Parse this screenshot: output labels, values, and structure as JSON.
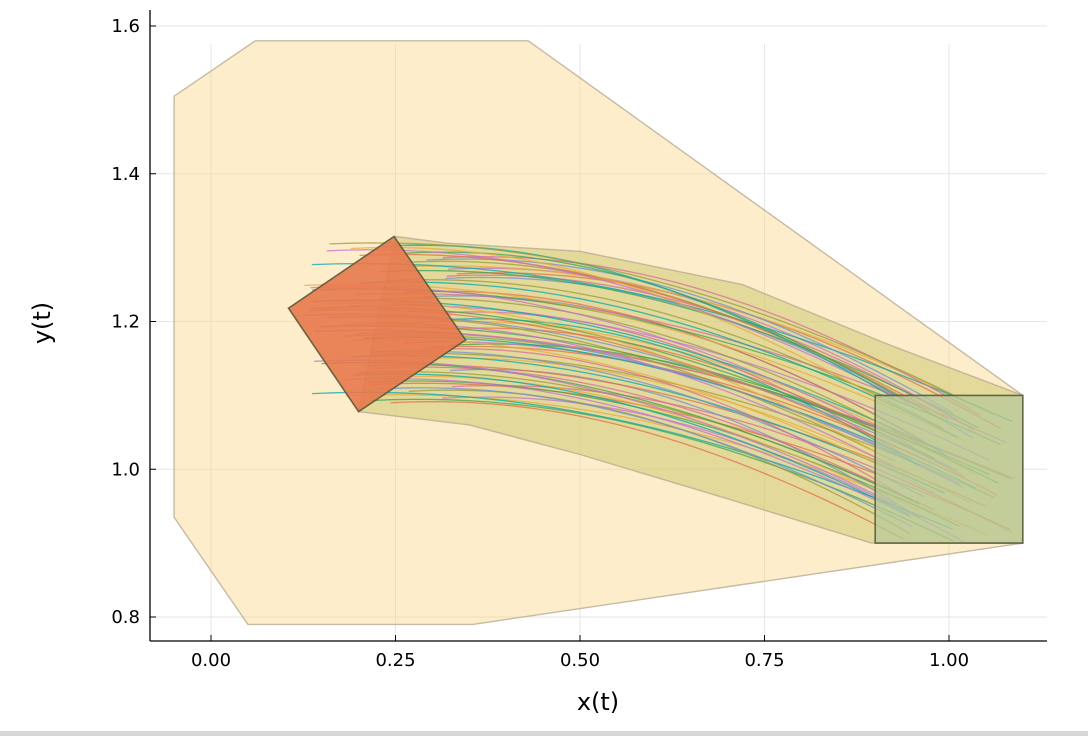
{
  "chart_data": {
    "type": "reachability-plot",
    "title": "",
    "xlabel": "x(t)",
    "ylabel": "y(t)",
    "xlim": [
      -0.08,
      1.13
    ],
    "ylim": [
      0.77,
      1.625
    ],
    "xticks": [
      0.0,
      0.25,
      0.5,
      0.75,
      1.0
    ],
    "xtick_labels": [
      "0.00",
      "0.25",
      "0.50",
      "0.75",
      "1.00"
    ],
    "yticks": [
      0.8,
      1.0,
      1.2,
      1.4,
      1.6
    ],
    "ytick_labels": [
      "0.8",
      "1.0",
      "1.2",
      "1.4",
      "1.6"
    ],
    "grid": true,
    "legend": "none",
    "regions": [
      {
        "kind": "overapproximation",
        "color": "#fdd88a",
        "opacity": 0.45,
        "vertices": [
          [
            -0.05,
            1.505
          ],
          [
            0.06,
            1.58
          ],
          [
            0.43,
            1.58
          ],
          [
            1.1,
            1.1
          ],
          [
            1.1,
            0.9
          ],
          [
            0.355,
            0.79
          ],
          [
            0.05,
            0.79
          ],
          [
            -0.05,
            0.935
          ]
        ]
      },
      {
        "kind": "reachable-tube",
        "color": "#c8c66a",
        "opacity": 0.5,
        "vertices": [
          [
            0.25,
            1.315
          ],
          [
            0.32,
            1.306
          ],
          [
            0.5,
            1.295
          ],
          [
            0.72,
            1.25
          ],
          [
            0.92,
            1.168
          ],
          [
            1.1,
            1.1
          ],
          [
            1.1,
            0.9
          ],
          [
            0.895,
            0.9
          ],
          [
            0.7,
            0.96
          ],
          [
            0.5,
            1.02
          ],
          [
            0.35,
            1.06
          ],
          [
            0.2,
            1.078
          ]
        ]
      },
      {
        "kind": "initial-set",
        "color": "#e8784c",
        "opacity": 0.9,
        "vertices": [
          [
            0.248,
            1.315
          ],
          [
            0.345,
            1.175
          ],
          [
            0.2,
            1.078
          ],
          [
            0.105,
            1.218
          ]
        ]
      },
      {
        "kind": "target-set",
        "color": "#b8c899",
        "opacity": 0.75,
        "vertices": [
          [
            0.9,
            1.1
          ],
          [
            1.1,
            1.1
          ],
          [
            1.1,
            0.9
          ],
          [
            0.9,
            0.9
          ]
        ]
      }
    ],
    "trajectories": {
      "count": 70,
      "start_x_range": [
        0.12,
        0.34
      ],
      "end_x_range": [
        0.92,
        1.09
      ],
      "start_y_range": [
        1.09,
        1.305
      ],
      "end_y_range": [
        0.905,
        1.09
      ],
      "colors": [
        "#e26f46",
        "#3da44d",
        "#c271d2",
        "#e8a93c",
        "#00a9ad",
        "#9a9a3a",
        "#6f8fd6",
        "#d86a9a"
      ]
    }
  }
}
